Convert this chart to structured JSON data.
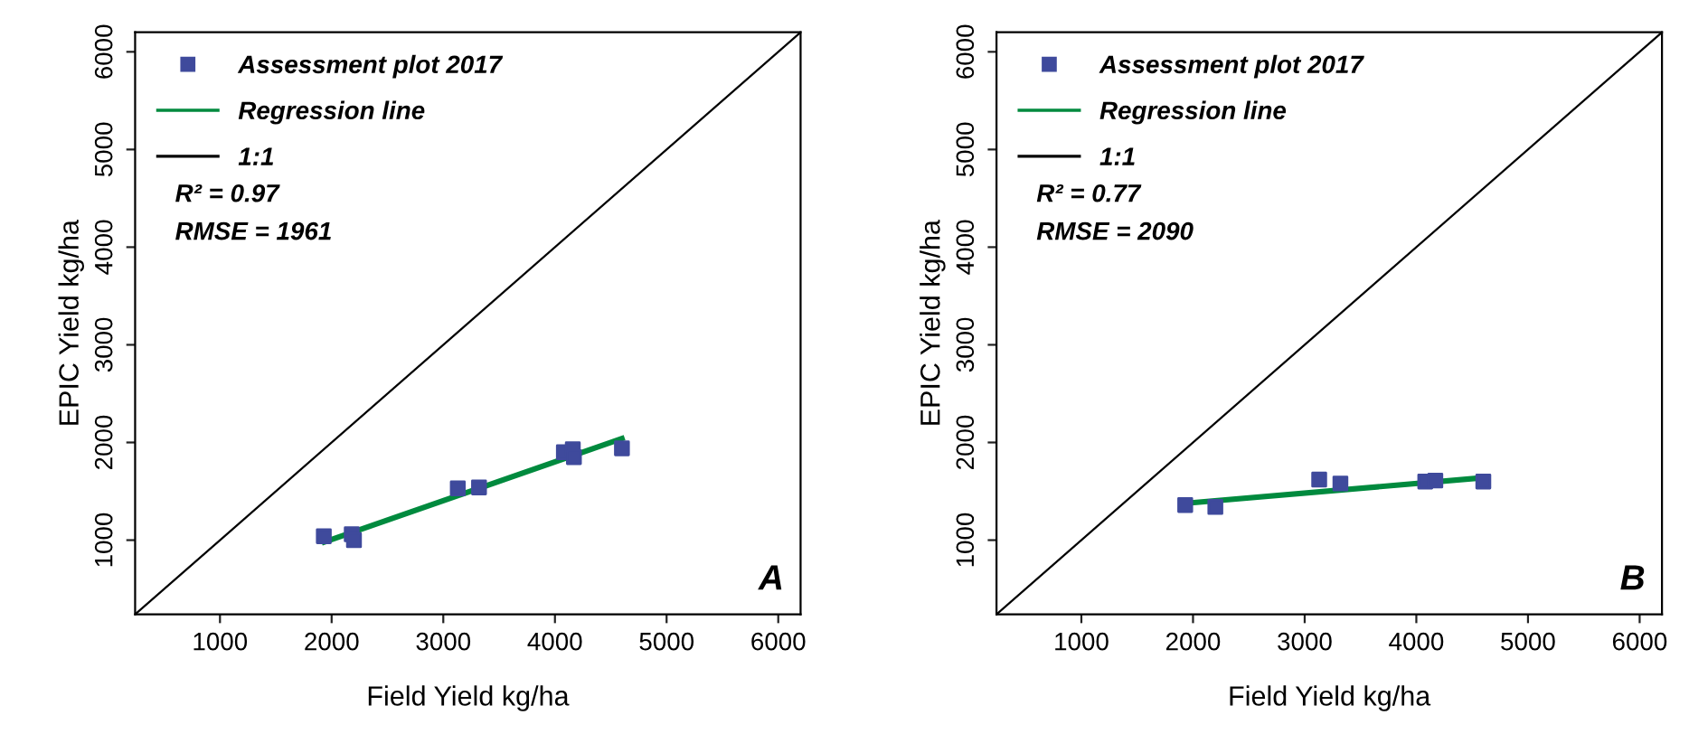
{
  "chart_data": [
    {
      "type": "scatter",
      "xlabel": "Field Yield kg/ha",
      "ylabel": "EPIC Yield kg/ha",
      "xlim": [
        240,
        6200
      ],
      "ylim": [
        240,
        6200
      ],
      "xticks": [
        1000,
        2000,
        3000,
        4000,
        5000,
        6000
      ],
      "yticks": [
        1000,
        2000,
        3000,
        4000,
        5000,
        6000
      ],
      "grid": false,
      "legend": "top left",
      "annotations": [
        "R² = 0.97",
        "RMSE = 1961",
        "A"
      ],
      "series": [
        {
          "name": "Assessment plot 2017",
          "marker": "square",
          "color": "#3f4a9c",
          "x": [
            1930,
            2180,
            2200,
            3130,
            3320,
            4080,
            4160,
            4170,
            4600
          ],
          "values": [
            1040,
            1060,
            1000,
            1530,
            1540,
            1900,
            1930,
            1850,
            1940
          ]
        },
        {
          "name": "Regression line",
          "type": "line",
          "color": "#008a3e",
          "x": [
            1935,
            4600
          ],
          "values": [
            980,
            2040
          ]
        },
        {
          "name": "1:1",
          "type": "line",
          "color": "#000000",
          "x": [
            240,
            6200
          ],
          "values": [
            240,
            6200
          ]
        }
      ]
    },
    {
      "type": "scatter",
      "xlabel": "Field Yield kg/ha",
      "ylabel": "EPIC Yield kg/ha",
      "xlim": [
        240,
        6200
      ],
      "ylim": [
        240,
        6200
      ],
      "xticks": [
        1000,
        2000,
        3000,
        4000,
        5000,
        6000
      ],
      "yticks": [
        1000,
        2000,
        3000,
        4000,
        5000,
        6000
      ],
      "grid": false,
      "legend": "top left",
      "annotations": [
        "R² = 0.77",
        "RMSE = 2090",
        "B"
      ],
      "series": [
        {
          "name": "Assessment plot 2017",
          "marker": "square",
          "color": "#3f4a9c",
          "x": [
            1930,
            2180,
            2200,
            3130,
            3320,
            4080,
            4160,
            4170,
            4600
          ],
          "values": [
            1360,
            null,
            1340,
            1620,
            1580,
            1600,
            null,
            1610,
            1600
          ]
        },
        {
          "name": "Regression line",
          "type": "line",
          "color": "#008a3e",
          "x": [
            1960,
            4610
          ],
          "values": [
            1380,
            1640
          ]
        },
        {
          "name": "1:1",
          "type": "line",
          "color": "#000000",
          "x": [
            240,
            6200
          ],
          "values": [
            240,
            6200
          ]
        }
      ]
    }
  ]
}
